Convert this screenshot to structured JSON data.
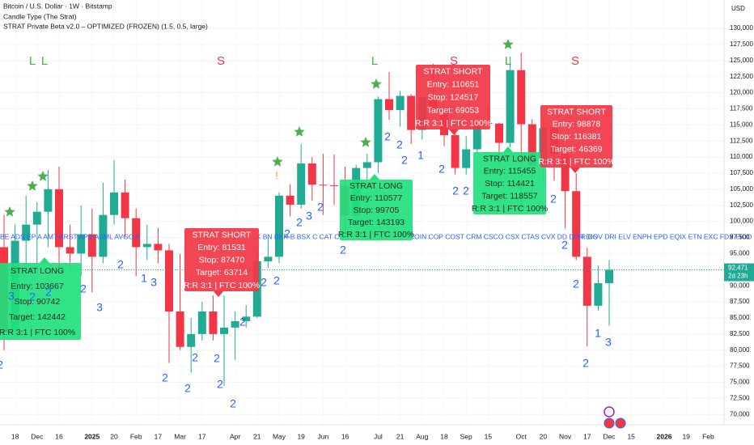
{
  "chart_data": {
    "type": "candlestick",
    "title": "Bitcoin / U.S. Dollar · 1W · Bitstamp",
    "subtitles": [
      "Candle Type (The Strat)",
      "STRAT Private Beta v2.0 – OPTIMIZED (FROZEN) (1.5, 0.5, large)"
    ],
    "currency": "USD",
    "categories": [
      null,
      "18",
      null,
      "Dec",
      null,
      "16",
      null,
      null,
      "2025",
      null,
      "20",
      null,
      "Feb",
      null,
      "17",
      null,
      "Mar",
      null,
      "17",
      null,
      null,
      "Apr",
      null,
      "21",
      null,
      "May",
      null,
      "19",
      null,
      "Jun",
      null,
      "16",
      null,
      null,
      "Jul",
      null,
      "21",
      null,
      "Aug",
      null,
      "18",
      null,
      "Sep",
      null,
      "15",
      null,
      null,
      "Oct",
      null,
      "20",
      null,
      "Nov",
      null,
      "17",
      null,
      "Dec",
      null,
      "15",
      null,
      null,
      "2026",
      null,
      "19",
      null,
      "Feb"
    ],
    "open": [
      96000,
      83000,
      97000,
      99500,
      101500,
      105000,
      96000,
      95000,
      98000,
      94500,
      101000,
      104500,
      100500,
      96000,
      96500,
      95500,
      86000,
      80500,
      82500,
      86000,
      82500,
      83500,
      84500,
      85200,
      93800,
      94500,
      104000,
      102600,
      109000,
      105700,
      105600,
      105500,
      100900,
      108300,
      109200,
      119000,
      117300,
      119500,
      114200,
      119300,
      117400,
      113400,
      108300,
      111200,
      115300,
      115200,
      112200,
      123500,
      115100,
      108600,
      114500,
      110500,
      104700,
      94500,
      86900,
      90400,
      null,
      null,
      null,
      null,
      null,
      null,
      null,
      null,
      null
    ],
    "high": [
      101000,
      99500,
      104000,
      103000,
      108000,
      108500,
      99500,
      102500,
      102000,
      106000,
      109500,
      106500,
      102000,
      99500,
      99000,
      96500,
      95000,
      85000,
      87500,
      88500,
      88500,
      86000,
      87000,
      95500,
      97500,
      104500,
      105800,
      112000,
      110000,
      110500,
      110400,
      108500,
      108800,
      110500,
      119400,
      123200,
      120300,
      119800,
      119300,
      124500,
      117600,
      113900,
      113300,
      116700,
      117900,
      115300,
      125600,
      126200,
      115900,
      116300,
      116000,
      110900,
      107500,
      95900,
      93100,
      94000,
      null,
      null,
      null,
      null,
      null,
      null,
      null,
      null,
      null
    ],
    "low": [
      80000,
      82000,
      93000,
      92000,
      96000,
      92000,
      92500,
      91500,
      89000,
      93500,
      99500,
      97500,
      91500,
      94000,
      93500,
      78000,
      80000,
      76500,
      81500,
      81500,
      74500,
      78500,
      83500,
      85000,
      92800,
      93500,
      100800,
      102000,
      103200,
      101000,
      102600,
      98200,
      99600,
      105000,
      107500,
      115800,
      114700,
      112000,
      112700,
      117000,
      111700,
      107300,
      107300,
      110600,
      114800,
      108700,
      111500,
      102000,
      103600,
      106400,
      106300,
      98900,
      94000,
      80600,
      86100,
      83800,
      null,
      null,
      null,
      null,
      null,
      null,
      null,
      null,
      null
    ],
    "close": [
      83000,
      97000,
      99500,
      101500,
      105000,
      96000,
      95000,
      98000,
      94500,
      101000,
      104500,
      100500,
      96000,
      96500,
      95500,
      86000,
      80500,
      82500,
      86000,
      82500,
      83500,
      84500,
      85200,
      93800,
      94500,
      104000,
      102600,
      109000,
      105700,
      105600,
      105500,
      100900,
      108300,
      109200,
      119000,
      117300,
      119500,
      114200,
      119300,
      117400,
      113400,
      108300,
      111200,
      115300,
      115200,
      112200,
      123500,
      115100,
      108600,
      114500,
      110500,
      104700,
      94500,
      86900,
      90400,
      92471,
      null,
      null,
      null,
      null,
      null,
      null,
      null,
      null,
      null
    ],
    "up_color": "#22ab94",
    "down_color": "#f23645",
    "ylim": [
      68400,
      134400
    ],
    "yticks": [
      {
        "value": 70000,
        "label": "70,000"
      },
      {
        "value": 72500,
        "label": "72,500"
      },
      {
        "value": 75000,
        "label": "75,000"
      },
      {
        "value": 77500,
        "label": "77,500"
      },
      {
        "value": 80000,
        "label": "80,000"
      },
      {
        "value": 82500,
        "label": "82,500"
      },
      {
        "value": 85000,
        "label": "85,000"
      },
      {
        "value": 87500,
        "label": "87,500"
      },
      {
        "value": 90000,
        "label": "90,000"
      },
      {
        "value": 92500,
        "label": "92,500"
      },
      {
        "value": 95000,
        "label": "95,000"
      },
      {
        "value": 97500,
        "label": "97,500"
      },
      {
        "value": 100000,
        "label": "100,000"
      },
      {
        "value": 102500,
        "label": "102,500"
      },
      {
        "value": 105000,
        "label": "105,000"
      },
      {
        "value": 107500,
        "label": "107,500"
      },
      {
        "value": 110000,
        "label": "110,000"
      },
      {
        "value": 112500,
        "label": "112,500"
      },
      {
        "value": 115000,
        "label": "115,000"
      },
      {
        "value": 117500,
        "label": "117,500"
      },
      {
        "value": 120000,
        "label": "120,000"
      },
      {
        "value": 122500,
        "label": "122,500"
      },
      {
        "value": 125000,
        "label": "125,000"
      },
      {
        "value": 127500,
        "label": "127,500"
      },
      {
        "value": 130000,
        "label": "130,000"
      }
    ],
    "grid": true,
    "last_price_label": "92,471",
    "countdown": "2d 23h",
    "signal_letters": [
      {
        "text": "L",
        "color": "#4caf50"
      },
      {
        "text": "L",
        "color": "#4caf50"
      },
      {
        "text": "S",
        "color": "#f23645"
      },
      {
        "text": "L",
        "color": "#4caf50"
      },
      {
        "text": "S",
        "color": "#f23645"
      },
      {
        "text": "L",
        "color": "#4caf50"
      },
      {
        "text": "S",
        "color": "#f23645"
      }
    ],
    "alert_marker": "!",
    "strat_labels": [
      "2",
      "3",
      "2",
      "2",
      "2",
      "3",
      "2",
      "1",
      "3",
      "2",
      "2",
      "2",
      "2",
      "2",
      "2",
      "2",
      "2",
      "2",
      "2",
      "2",
      "3",
      "2",
      "2",
      "2",
      "2",
      "2",
      "1",
      "2",
      "2",
      "2",
      "2",
      "2",
      "2",
      "2",
      "1",
      "3"
    ],
    "ticker_strip": [
      "BE  ADS  EP  A  AMT  ARST  APD  ASML  AVGO  A",
      "LK BN BKR B BSX C CAT CB",
      "COIN COP COST CRM CSCO CSX CTAS CVX DD DHR DIS",
      "R DOV DRI ELV ENPH EPD EQIX ETN EXC FDX FICO G"
    ],
    "boxes": [
      {
        "color": "#1fe07d",
        "text_color": "#1b2a22",
        "lines": [
          "STRAT LONG",
          "Entry: 103667",
          "Stop: 90742",
          "Target: 142442",
          "R:R 3:1 | FTC 100%"
        ]
      },
      {
        "color": "#f23645",
        "text_color": "#ffffff",
        "lines": [
          "STRAT SHORT",
          "Entry: 81531",
          "Stop: 87470",
          "Target: 63714",
          "R:R 3:1 | FTC 100%"
        ]
      },
      {
        "color": "#1fe07d",
        "text_color": "#1b2a22",
        "lines": [
          "STRAT LONG",
          "Entry: 110577",
          "Stop: 99705",
          "Target: 143193",
          "R:R 3:1 | FTC 100%"
        ]
      },
      {
        "color": "#f23645",
        "text_color": "#ffffff",
        "lines": [
          "STRAT SHORT",
          "Entry: 110651",
          "Stop: 124517",
          "Target: 69053",
          "R:R 3:1 | FTC 100%"
        ]
      },
      {
        "color": "#1fe07d",
        "text_color": "#1b2a22",
        "lines": [
          "STRAT LONG",
          "Entry: 115455",
          "Stop: 114421",
          "Target: 118557",
          "R:R 3:1 | FTC 100%"
        ]
      },
      {
        "color": "#f23645",
        "text_color": "#ffffff",
        "lines": [
          "STRAT SHORT",
          "Entry: 98878",
          "Stop: 116381",
          "Target: 46369",
          "R:R 3:1 | FTC 100%"
        ]
      }
    ]
  }
}
